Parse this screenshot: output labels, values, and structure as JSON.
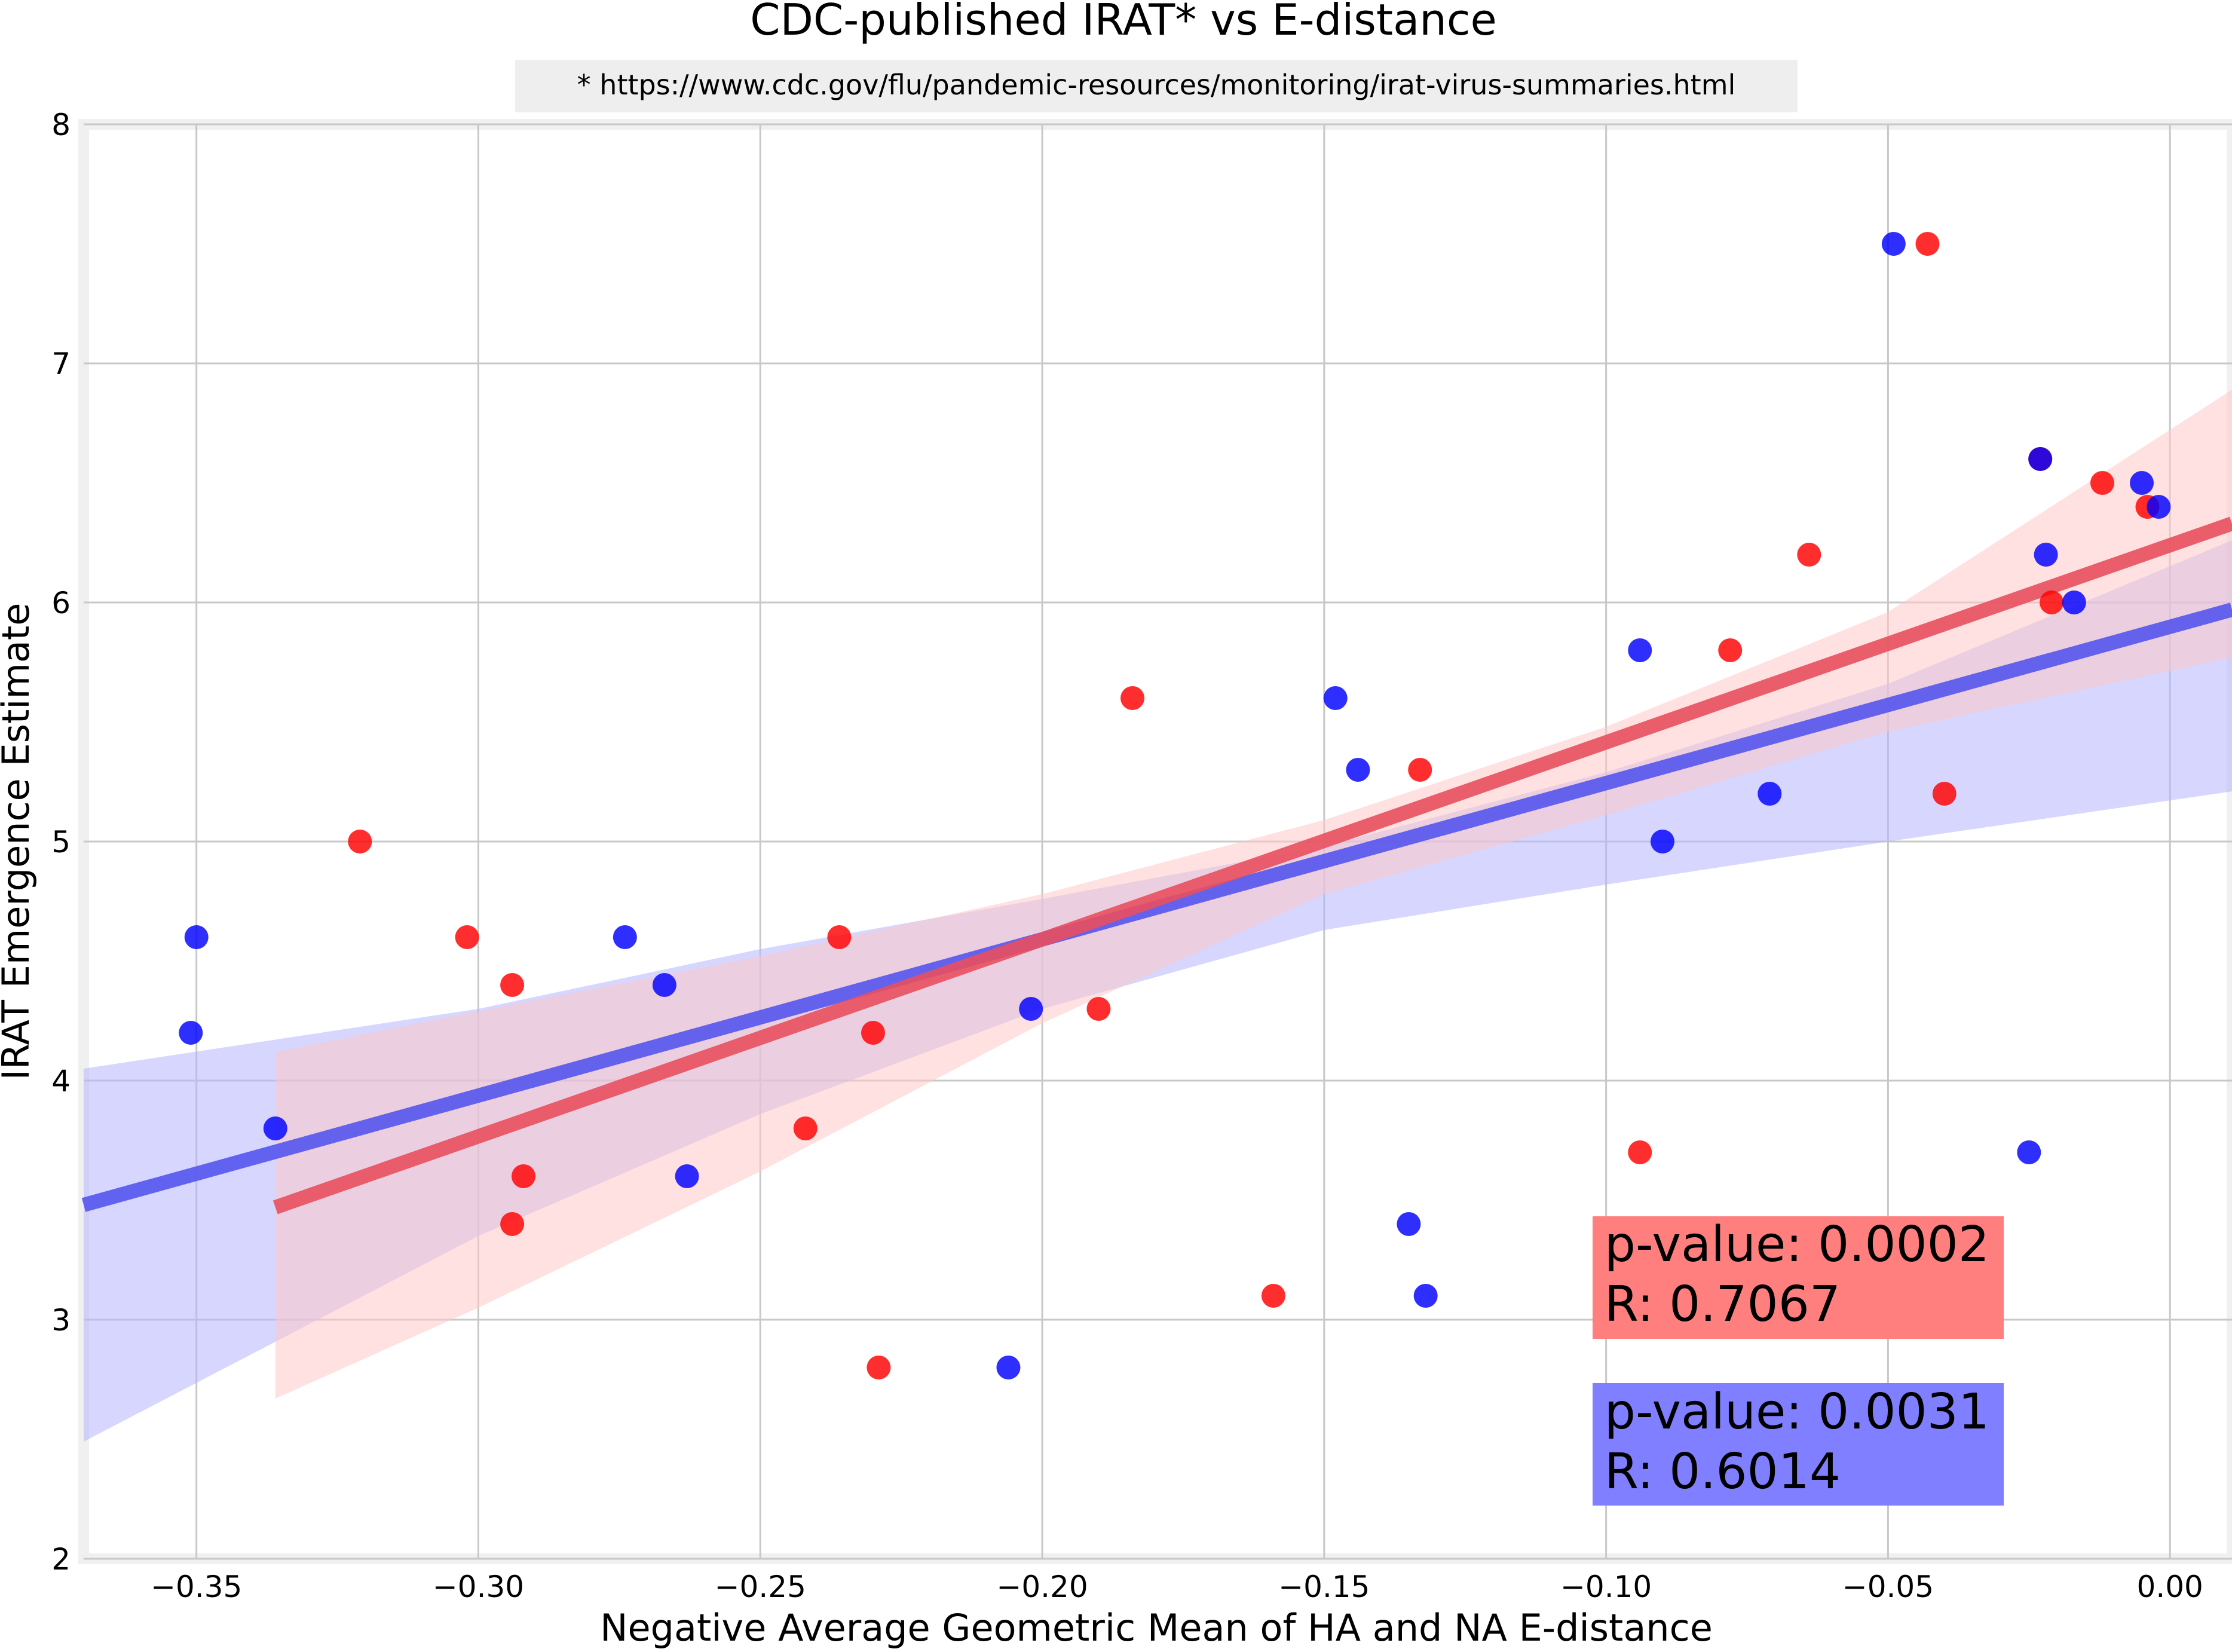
{
  "chart_data": {
    "type": "scatter",
    "title": "CDC-published IRAT* vs E-distance",
    "subtitle": "* https://www.cdc.gov/flu/pandemic-resources/monitoring/irat-virus-summaries.html",
    "xlabel": "Negative Average Geometric Mean of HA and NA E-distance",
    "ylabel": "IRAT Emergence Estimate",
    "xlim": [
      -0.37,
      0.011
    ],
    "ylim": [
      2,
      8
    ],
    "x_ticks": [
      -0.35,
      -0.3,
      -0.25,
      -0.2,
      -0.15,
      -0.1,
      -0.05,
      0.0
    ],
    "x_tick_labels": [
      "−0.35",
      "−0.30",
      "−0.25",
      "−0.20",
      "−0.15",
      "−0.10",
      "−0.05",
      "0.00"
    ],
    "y_ticks": [
      2,
      3,
      4,
      5,
      6,
      7,
      8
    ],
    "y_tick_labels": [
      "2",
      "3",
      "4",
      "5",
      "6",
      "7",
      "8"
    ],
    "grid": true,
    "series": [
      {
        "color": "#ff0000",
        "points": [
          [
            -0.321,
            5.0
          ],
          [
            -0.302,
            4.6
          ],
          [
            -0.294,
            4.4
          ],
          [
            -0.292,
            3.6
          ],
          [
            -0.294,
            3.4
          ],
          [
            -0.236,
            4.6
          ],
          [
            -0.23,
            4.2
          ],
          [
            -0.242,
            3.8
          ],
          [
            -0.229,
            2.8
          ],
          [
            -0.184,
            5.6
          ],
          [
            -0.19,
            4.3
          ],
          [
            -0.159,
            3.1
          ],
          [
            -0.133,
            5.3
          ],
          [
            -0.094,
            3.7
          ],
          [
            -0.078,
            5.8
          ],
          [
            -0.064,
            6.2
          ],
          [
            -0.043,
            7.5
          ],
          [
            -0.04,
            5.2
          ],
          [
            -0.023,
            6.6
          ],
          [
            -0.021,
            6.0
          ],
          [
            -0.012,
            6.5
          ],
          [
            -0.004,
            6.4
          ]
        ],
        "fit": {
          "x": [
            -0.336,
            0.011
          ],
          "y": [
            3.47,
            6.33
          ]
        },
        "ci": {
          "x": [
            -0.336,
            -0.3,
            -0.25,
            -0.2,
            -0.15,
            -0.1,
            -0.05,
            0.011
          ],
          "upper": [
            4.12,
            4.29,
            4.52,
            4.78,
            5.09,
            5.48,
            5.96,
            6.89
          ],
          "lower": [
            2.67,
            3.05,
            3.62,
            4.24,
            4.78,
            5.11,
            5.46,
            5.77
          ]
        },
        "annotation": [
          "p-value: 0.0002",
          "R: 0.7067"
        ]
      },
      {
        "color": "#0000ff",
        "points": [
          [
            -0.351,
            4.2
          ],
          [
            -0.35,
            4.6
          ],
          [
            -0.336,
            3.8
          ],
          [
            -0.274,
            4.6
          ],
          [
            -0.267,
            4.4
          ],
          [
            -0.263,
            3.6
          ],
          [
            -0.202,
            4.3
          ],
          [
            -0.206,
            2.8
          ],
          [
            -0.148,
            5.6
          ],
          [
            -0.144,
            5.3
          ],
          [
            -0.135,
            3.4
          ],
          [
            -0.132,
            3.1
          ],
          [
            -0.094,
            5.8
          ],
          [
            -0.09,
            5.0
          ],
          [
            -0.071,
            5.2
          ],
          [
            -0.049,
            7.5
          ],
          [
            -0.025,
            3.7
          ],
          [
            -0.023,
            6.6
          ],
          [
            -0.022,
            6.2
          ],
          [
            -0.017,
            6.0
          ],
          [
            -0.005,
            6.5
          ],
          [
            -0.002,
            6.4
          ]
        ],
        "fit": {
          "x": [
            -0.37,
            0.011
          ],
          "y": [
            3.48,
            5.97
          ]
        },
        "ci": {
          "x": [
            -0.37,
            -0.3,
            -0.25,
            -0.2,
            -0.15,
            -0.1,
            -0.05,
            0.011
          ],
          "upper": [
            4.05,
            4.3,
            4.55,
            4.76,
            4.98,
            5.29,
            5.66,
            6.26
          ],
          "lower": [
            2.49,
            3.35,
            3.86,
            4.3,
            4.63,
            4.82,
            5.0,
            5.21
          ]
        },
        "annotation": [
          "p-value: 0.0031",
          "R: 0.6014"
        ]
      }
    ]
  },
  "colors": {
    "red_point": "#ff0000",
    "blue_point": "#0000ff",
    "red_line": "#e8505e",
    "blue_line": "#5555ee",
    "red_band": "#ffc8c8",
    "blue_band": "#b4b4ff",
    "red_annotation_bg": "#ff7f7f",
    "blue_annotation_bg": "#7f7fff",
    "subtitle_bg": "#eeeeee",
    "grid": "#c8c8c8",
    "frame": "#f0f0f0"
  }
}
